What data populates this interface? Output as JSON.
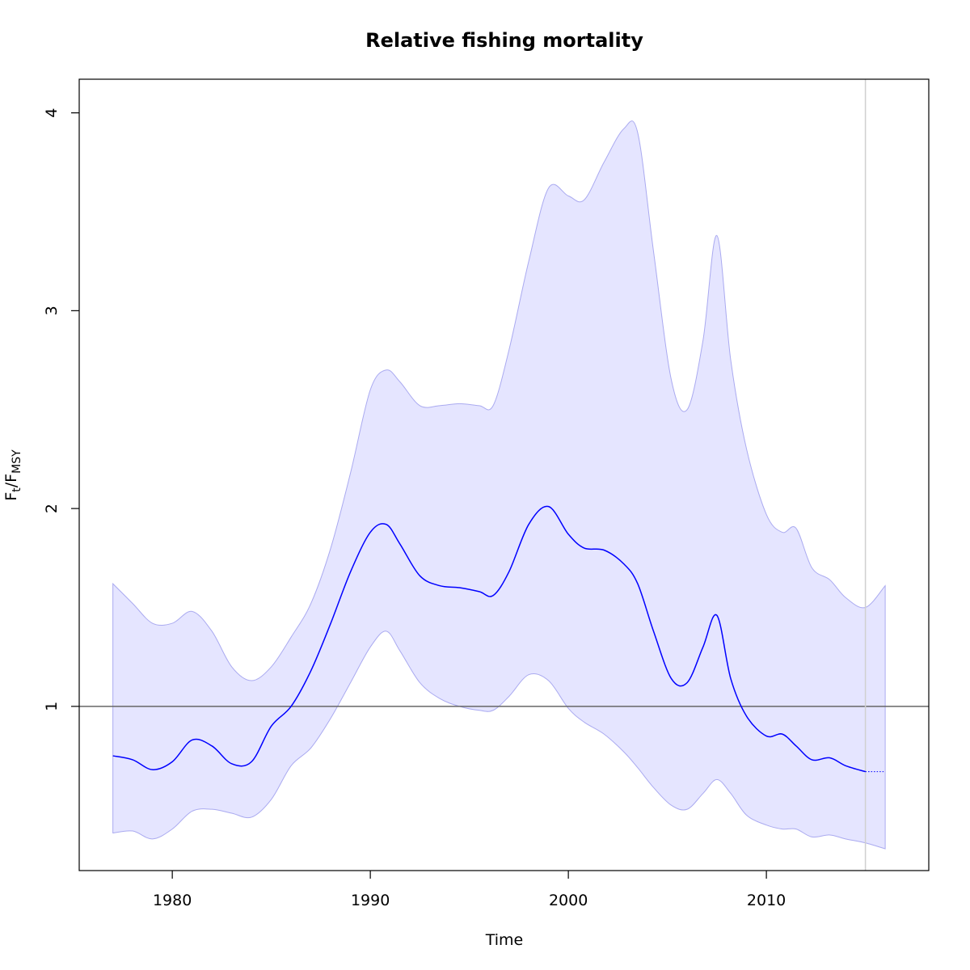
{
  "chart_data": {
    "type": "line",
    "title": "Relative fishing mortality",
    "xlabel": "Time",
    "ylabel": {
      "main": "F",
      "sub1": "t",
      "sep": "/F",
      "sub2": "MSY"
    },
    "xlim": [
      1975.3,
      2018.2
    ],
    "ylim": [
      0.17,
      4.17
    ],
    "x_ticks": [
      1980,
      1990,
      2000,
      2010
    ],
    "y_ticks": [
      1,
      2,
      3,
      4
    ],
    "reference_line": {
      "y": 1,
      "color": "#666666"
    },
    "vertical_line": {
      "x": 2015,
      "color": "#d0d0d0"
    },
    "grid": false,
    "colors": {
      "series": "#0000ff",
      "band_fill": "#e5e5ff",
      "band_stroke": "#aaaaf0"
    },
    "series": [
      {
        "role": "estimate",
        "x": [
          1977,
          1978,
          1979,
          1980,
          1981,
          1982,
          1983,
          1984,
          1985,
          1986,
          1987,
          1988,
          1989,
          1990,
          1990.8,
          1991.5,
          1992.5,
          1993.5,
          1994.5,
          1995.5,
          1996.2,
          1997,
          1998,
          1999,
          2000,
          2000.8,
          2001.8,
          2002.8,
          2003.5,
          2004.3,
          2005.2,
          2006,
          2006.8,
          2007.5,
          2008.2,
          2009,
          2010,
          2010.8,
          2011.5,
          2012.3,
          2013.2,
          2014,
          2015
        ],
        "y": [
          0.75,
          0.73,
          0.68,
          0.72,
          0.83,
          0.8,
          0.71,
          0.72,
          0.9,
          1.0,
          1.18,
          1.42,
          1.68,
          1.88,
          1.92,
          1.82,
          1.66,
          1.61,
          1.6,
          1.58,
          1.56,
          1.68,
          1.92,
          2.01,
          1.87,
          1.8,
          1.79,
          1.72,
          1.62,
          1.38,
          1.14,
          1.12,
          1.3,
          1.46,
          1.14,
          0.95,
          0.85,
          0.86,
          0.8,
          0.73,
          0.74,
          0.7,
          0.67
        ]
      },
      {
        "role": "forecast",
        "x": [
          2015,
          2016
        ],
        "y": [
          0.67,
          0.67
        ]
      }
    ],
    "band": {
      "x": [
        1977,
        1978,
        1979,
        1980,
        1981,
        1982,
        1983,
        1984,
        1985,
        1986,
        1987,
        1988,
        1989,
        1990,
        1990.8,
        1991.5,
        1992.5,
        1993.5,
        1994.5,
        1995.5,
        1996.2,
        1997,
        1998,
        1999,
        2000,
        2000.8,
        2001.8,
        2002.8,
        2003.5,
        2004.3,
        2005.2,
        2006,
        2006.8,
        2007.5,
        2008.2,
        2009,
        2010,
        2010.8,
        2011.5,
        2012.3,
        2013.2,
        2014,
        2015,
        2016
      ],
      "upper": [
        1.62,
        1.52,
        1.42,
        1.42,
        1.48,
        1.38,
        1.2,
        1.13,
        1.2,
        1.35,
        1.52,
        1.8,
        2.18,
        2.6,
        2.7,
        2.64,
        2.52,
        2.52,
        2.53,
        2.52,
        2.52,
        2.8,
        3.25,
        3.62,
        3.58,
        3.56,
        3.75,
        3.92,
        3.9,
        3.3,
        2.65,
        2.5,
        2.85,
        3.38,
        2.75,
        2.3,
        1.97,
        1.88,
        1.9,
        1.7,
        1.64,
        1.55,
        1.5,
        1.61
      ],
      "lower": [
        0.36,
        0.37,
        0.33,
        0.38,
        0.47,
        0.48,
        0.46,
        0.44,
        0.53,
        0.7,
        0.79,
        0.94,
        1.12,
        1.3,
        1.38,
        1.28,
        1.12,
        1.04,
        1.0,
        0.98,
        0.98,
        1.05,
        1.16,
        1.13,
        0.99,
        0.92,
        0.86,
        0.77,
        0.69,
        0.59,
        0.5,
        0.48,
        0.56,
        0.63,
        0.56,
        0.45,
        0.4,
        0.38,
        0.38,
        0.34,
        0.35,
        0.33,
        0.31,
        0.28
      ]
    }
  }
}
